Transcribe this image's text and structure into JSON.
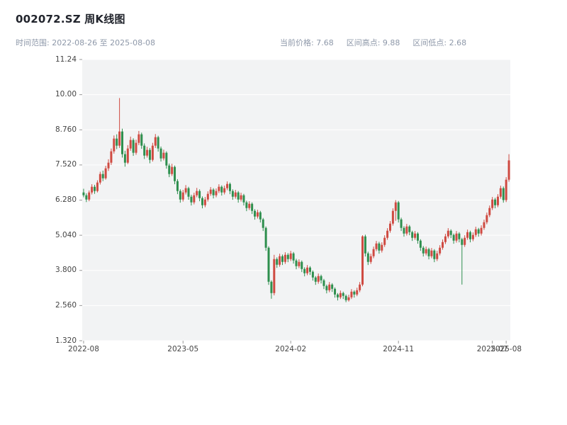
{
  "header": {
    "title": "002072.SZ 周K线图",
    "time_range_label": "时间范围: 2022-08-26 至 2025-08-08",
    "stats": {
      "current_price": "当前价格: 7.68",
      "range_high": "区间高点: 9.88",
      "range_low": "区间低点: 2.68"
    }
  },
  "chart_data": {
    "type": "candlestick",
    "title": "002072.SZ 周K线图",
    "symbol": "002072.SZ",
    "interval": "weekly",
    "date_start": "2022-08-26",
    "date_end": "2025-08-08",
    "current_price": 7.68,
    "range_high": 9.88,
    "range_low": 2.68,
    "up_color": "#cf4a41",
    "down_color": "#2e8f4e",
    "plot_bg": "#f2f3f4",
    "grid_color": "#ffffff",
    "grid": true,
    "ylim": [
      1.32,
      11.24
    ],
    "ytick_labels": [
      "11.24",
      "10.00",
      "8.760",
      "7.520",
      "6.280",
      "5.040",
      "3.800",
      "2.560",
      "1.320"
    ],
    "ytick_values": [
      11.24,
      10.0,
      8.76,
      7.52,
      6.28,
      5.04,
      3.8,
      2.56,
      1.32
    ],
    "xtick_labels": [
      "2022-08",
      "2023-05",
      "2024-02",
      "2024-11",
      "2025-07",
      "2025-08"
    ],
    "xtick_indices": [
      0,
      36,
      75,
      114,
      148,
      153
    ],
    "candles": [
      [
        6.55,
        6.68,
        6.38,
        6.45
      ],
      [
        6.45,
        6.52,
        6.21,
        6.3
      ],
      [
        6.3,
        6.62,
        6.24,
        6.55
      ],
      [
        6.55,
        6.84,
        6.48,
        6.75
      ],
      [
        6.75,
        6.82,
        6.5,
        6.6
      ],
      [
        6.6,
        6.98,
        6.55,
        6.9
      ],
      [
        6.9,
        7.28,
        6.83,
        7.2
      ],
      [
        7.2,
        7.32,
        6.95,
        7.05
      ],
      [
        7.05,
        7.49,
        7.0,
        7.4
      ],
      [
        7.4,
        7.72,
        7.31,
        7.6
      ],
      [
        7.6,
        8.1,
        7.52,
        8.0
      ],
      [
        8.0,
        8.56,
        7.92,
        8.45
      ],
      [
        8.45,
        8.6,
        8.08,
        8.2
      ],
      [
        8.2,
        9.88,
        8.12,
        8.7
      ],
      [
        8.7,
        8.8,
        7.78,
        7.9
      ],
      [
        7.9,
        8.02,
        7.46,
        7.6
      ],
      [
        7.6,
        8.22,
        7.55,
        8.1
      ],
      [
        8.1,
        8.52,
        8.02,
        8.4
      ],
      [
        8.4,
        8.46,
        7.84,
        7.95
      ],
      [
        7.95,
        8.41,
        7.88,
        8.3
      ],
      [
        8.3,
        8.72,
        8.22,
        8.6
      ],
      [
        8.6,
        8.66,
        8.09,
        8.2
      ],
      [
        8.2,
        8.28,
        7.73,
        7.85
      ],
      [
        7.85,
        8.16,
        7.78,
        8.05
      ],
      [
        8.05,
        8.12,
        7.58,
        7.7
      ],
      [
        7.7,
        8.3,
        7.64,
        8.2
      ],
      [
        8.2,
        8.61,
        8.12,
        8.5
      ],
      [
        8.5,
        8.55,
        7.99,
        8.1
      ],
      [
        8.1,
        8.17,
        7.64,
        7.75
      ],
      [
        7.75,
        8.06,
        7.68,
        7.95
      ],
      [
        7.95,
        8.0,
        7.39,
        7.5
      ],
      [
        7.5,
        7.57,
        7.09,
        7.2
      ],
      [
        7.2,
        7.56,
        7.13,
        7.45
      ],
      [
        7.45,
        7.5,
        6.84,
        6.95
      ],
      [
        6.95,
        7.02,
        6.49,
        6.6
      ],
      [
        6.6,
        6.66,
        6.19,
        6.3
      ],
      [
        6.3,
        6.64,
        6.23,
        6.55
      ],
      [
        6.55,
        6.81,
        6.48,
        6.7
      ],
      [
        6.7,
        6.75,
        6.29,
        6.4
      ],
      [
        6.4,
        6.47,
        6.09,
        6.2
      ],
      [
        6.2,
        6.54,
        6.13,
        6.45
      ],
      [
        6.45,
        6.71,
        6.38,
        6.6
      ],
      [
        6.6,
        6.66,
        6.24,
        6.35
      ],
      [
        6.35,
        6.41,
        5.99,
        6.1
      ],
      [
        6.1,
        6.39,
        6.03,
        6.3
      ],
      [
        6.3,
        6.59,
        6.23,
        6.5
      ],
      [
        6.5,
        6.74,
        6.43,
        6.65
      ],
      [
        6.65,
        6.7,
        6.34,
        6.45
      ],
      [
        6.45,
        6.69,
        6.38,
        6.6
      ],
      [
        6.6,
        6.84,
        6.53,
        6.75
      ],
      [
        6.75,
        6.8,
        6.44,
        6.55
      ],
      [
        6.55,
        6.79,
        6.48,
        6.7
      ],
      [
        6.7,
        6.94,
        6.63,
        6.85
      ],
      [
        6.85,
        6.9,
        6.49,
        6.6
      ],
      [
        6.6,
        6.66,
        6.29,
        6.4
      ],
      [
        6.4,
        6.64,
        6.33,
        6.55
      ],
      [
        6.55,
        6.6,
        6.19,
        6.3
      ],
      [
        6.3,
        6.54,
        6.23,
        6.45
      ],
      [
        6.45,
        6.5,
        6.09,
        6.2
      ],
      [
        6.2,
        6.26,
        5.89,
        6.0
      ],
      [
        6.0,
        6.24,
        5.93,
        6.15
      ],
      [
        6.15,
        6.2,
        5.79,
        5.9
      ],
      [
        5.9,
        5.96,
        5.59,
        5.7
      ],
      [
        5.7,
        5.94,
        5.63,
        5.85
      ],
      [
        5.85,
        5.9,
        5.49,
        5.6
      ],
      [
        5.6,
        5.65,
        5.19,
        5.3
      ],
      [
        5.3,
        5.35,
        4.49,
        4.6
      ],
      [
        4.6,
        4.65,
        3.29,
        3.4
      ],
      [
        3.4,
        3.45,
        2.8,
        3.0
      ],
      [
        3.0,
        4.35,
        2.92,
        4.2
      ],
      [
        4.2,
        4.26,
        3.89,
        4.0
      ],
      [
        4.0,
        4.39,
        3.93,
        4.3
      ],
      [
        4.3,
        4.36,
        3.99,
        4.1
      ],
      [
        4.1,
        4.44,
        4.03,
        4.35
      ],
      [
        4.35,
        4.41,
        4.09,
        4.2
      ],
      [
        4.2,
        4.49,
        4.13,
        4.4
      ],
      [
        4.4,
        4.45,
        4.04,
        4.15
      ],
      [
        4.15,
        4.21,
        3.84,
        3.95
      ],
      [
        3.95,
        4.19,
        3.88,
        4.1
      ],
      [
        4.1,
        4.15,
        3.74,
        3.85
      ],
      [
        3.85,
        3.91,
        3.59,
        3.7
      ],
      [
        3.7,
        3.99,
        3.63,
        3.9
      ],
      [
        3.9,
        3.95,
        3.64,
        3.75
      ],
      [
        3.75,
        3.8,
        3.44,
        3.55
      ],
      [
        3.55,
        3.6,
        3.29,
        3.4
      ],
      [
        3.4,
        3.69,
        3.33,
        3.6
      ],
      [
        3.6,
        3.65,
        3.34,
        3.45
      ],
      [
        3.45,
        3.5,
        3.14,
        3.25
      ],
      [
        3.25,
        3.3,
        2.99,
        3.1
      ],
      [
        3.1,
        3.39,
        3.03,
        3.3
      ],
      [
        3.3,
        3.35,
        3.04,
        3.15
      ],
      [
        3.15,
        3.2,
        2.84,
        2.95
      ],
      [
        2.95,
        3.0,
        2.74,
        2.85
      ],
      [
        2.85,
        3.09,
        2.79,
        3.0
      ],
      [
        3.0,
        3.05,
        2.79,
        2.9
      ],
      [
        2.9,
        2.95,
        2.68,
        2.75
      ],
      [
        2.75,
        2.94,
        2.7,
        2.85
      ],
      [
        2.85,
        3.14,
        2.79,
        3.05
      ],
      [
        3.05,
        3.1,
        2.84,
        2.95
      ],
      [
        2.95,
        3.19,
        2.89,
        3.1
      ],
      [
        3.1,
        3.39,
        3.03,
        3.3
      ],
      [
        3.3,
        5.04,
        3.24,
        5.0
      ],
      [
        5.0,
        5.06,
        4.29,
        4.4
      ],
      [
        4.4,
        4.46,
        3.99,
        4.1
      ],
      [
        4.1,
        4.39,
        4.03,
        4.3
      ],
      [
        4.3,
        4.64,
        4.23,
        4.55
      ],
      [
        4.55,
        4.84,
        4.48,
        4.75
      ],
      [
        4.75,
        4.81,
        4.39,
        4.5
      ],
      [
        4.5,
        4.79,
        4.43,
        4.7
      ],
      [
        4.7,
        5.04,
        4.63,
        4.95
      ],
      [
        4.95,
        5.29,
        4.88,
        5.2
      ],
      [
        5.2,
        5.54,
        5.13,
        5.45
      ],
      [
        5.45,
        5.99,
        5.38,
        5.9
      ],
      [
        5.9,
        6.28,
        5.55,
        6.2
      ],
      [
        6.2,
        6.25,
        5.49,
        5.6
      ],
      [
        5.6,
        5.66,
        5.19,
        5.3
      ],
      [
        5.3,
        5.36,
        4.99,
        5.1
      ],
      [
        5.1,
        5.44,
        5.03,
        5.35
      ],
      [
        5.35,
        5.4,
        5.04,
        5.15
      ],
      [
        5.15,
        5.2,
        4.84,
        4.95
      ],
      [
        4.95,
        5.19,
        4.88,
        5.1
      ],
      [
        5.1,
        5.15,
        4.74,
        4.85
      ],
      [
        4.85,
        4.9,
        4.49,
        4.6
      ],
      [
        4.6,
        4.66,
        4.29,
        4.4
      ],
      [
        4.4,
        4.64,
        4.33,
        4.55
      ],
      [
        4.55,
        4.6,
        4.19,
        4.3
      ],
      [
        4.3,
        4.59,
        4.23,
        4.5
      ],
      [
        4.5,
        4.55,
        4.09,
        4.2
      ],
      [
        4.2,
        4.49,
        4.13,
        4.4
      ],
      [
        4.4,
        4.69,
        4.33,
        4.6
      ],
      [
        4.6,
        4.89,
        4.53,
        4.8
      ],
      [
        4.8,
        5.09,
        4.73,
        5.0
      ],
      [
        5.0,
        5.29,
        4.93,
        5.2
      ],
      [
        5.2,
        5.25,
        4.94,
        5.05
      ],
      [
        5.05,
        5.1,
        4.74,
        4.85
      ],
      [
        4.85,
        5.19,
        4.78,
        5.1
      ],
      [
        5.1,
        5.15,
        4.79,
        4.9
      ],
      [
        4.9,
        4.95,
        3.3,
        4.7
      ],
      [
        4.7,
        5.04,
        4.63,
        4.95
      ],
      [
        4.95,
        5.24,
        4.88,
        5.15
      ],
      [
        5.15,
        5.2,
        4.79,
        4.9
      ],
      [
        4.9,
        5.14,
        4.83,
        5.05
      ],
      [
        5.05,
        5.34,
        4.98,
        5.25
      ],
      [
        5.25,
        5.3,
        4.99,
        5.1
      ],
      [
        5.1,
        5.39,
        5.03,
        5.3
      ],
      [
        5.3,
        5.59,
        5.23,
        5.5
      ],
      [
        5.5,
        5.84,
        5.43,
        5.75
      ],
      [
        5.75,
        6.09,
        5.68,
        6.0
      ],
      [
        6.0,
        6.39,
        5.93,
        6.3
      ],
      [
        6.3,
        6.36,
        5.99,
        6.1
      ],
      [
        6.1,
        6.49,
        6.03,
        6.4
      ],
      [
        6.4,
        6.79,
        6.33,
        6.7
      ],
      [
        6.7,
        6.76,
        6.19,
        6.28
      ],
      [
        6.28,
        7.09,
        6.21,
        7.0
      ],
      [
        7.0,
        7.9,
        6.93,
        7.68
      ]
    ]
  }
}
